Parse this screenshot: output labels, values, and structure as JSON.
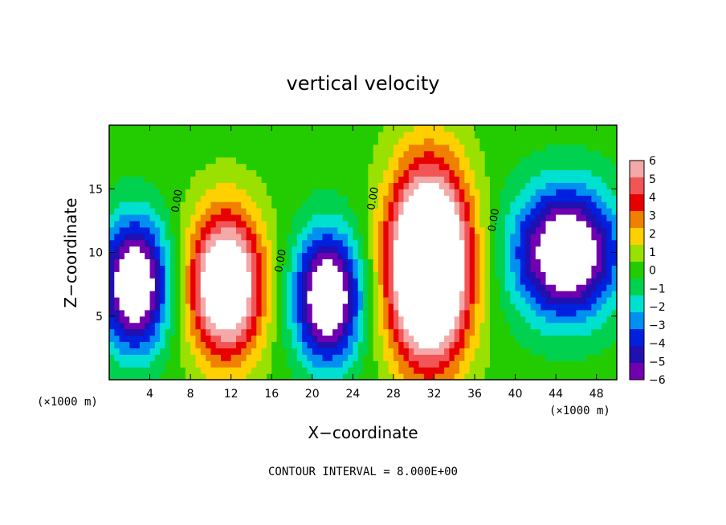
{
  "chart_data": {
    "type": "heatmap",
    "title": "vertical velocity",
    "xlabel": "X−coordinate",
    "ylabel": "Z−coordinate",
    "x_unit_label": "(×1000 m)",
    "x_unit_label_right": "(×1000 m)",
    "footer": "CONTOUR INTERVAL = 8.000E+00",
    "xlim": [
      0,
      50
    ],
    "ylim": [
      0,
      20
    ],
    "x_ticks": [
      4,
      8,
      12,
      16,
      20,
      24,
      28,
      32,
      36,
      40,
      44,
      48
    ],
    "y_ticks": [
      5,
      10,
      15
    ],
    "x_tick_labels": [
      "4",
      "8",
      "12",
      "16",
      "20",
      "24",
      "28",
      "32",
      "36",
      "40",
      "44",
      "48"
    ],
    "y_tick_labels": [
      "5",
      "10",
      "15"
    ],
    "colorbar": {
      "levels": [
        6,
        5,
        4,
        3,
        2,
        1,
        0,
        -1,
        -2,
        -3,
        -4,
        -5,
        -6
      ],
      "labels": [
        "6",
        "5",
        "4",
        "3",
        "2",
        "1",
        "0",
        "−1",
        "−2",
        "−3",
        "−4",
        "−5",
        "−6"
      ],
      "colors": [
        "#f4a8a8",
        "#f25555",
        "#e80000",
        "#f08000",
        "#ffd000",
        "#9ae000",
        "#22cc00",
        "#00d250",
        "#00e0d0",
        "#0090f0",
        "#0020e0",
        "#2010b0",
        "#7000b0"
      ]
    },
    "contour_labels": [
      {
        "text": "0.00",
        "x": 7.0,
        "z": 14.0
      },
      {
        "text": "0.00",
        "x": 17.2,
        "z": 9.3
      },
      {
        "text": "0.00",
        "x": 26.3,
        "z": 14.2
      },
      {
        "text": "0.00",
        "x": 38.2,
        "z": 12.5
      }
    ],
    "features": {
      "updrafts": [
        {
          "x": 11.5,
          "z": 7.5,
          "w": 5.0,
          "h": 8.0,
          "peak": 10
        },
        {
          "x": 31.5,
          "z": 9.0,
          "w": 5.5,
          "h": 10.5,
          "peak": 14
        }
      ],
      "downdrafts": [
        {
          "x": 2.5,
          "z": 7.5,
          "w": 4.5,
          "h": 7.0,
          "peak": -9
        },
        {
          "x": 21.5,
          "z": 6.5,
          "w": 4.5,
          "h": 7.0,
          "peak": -9
        },
        {
          "x": 45.0,
          "z": 10.0,
          "w": 7.0,
          "h": 7.0,
          "peak": -9
        }
      ]
    }
  }
}
